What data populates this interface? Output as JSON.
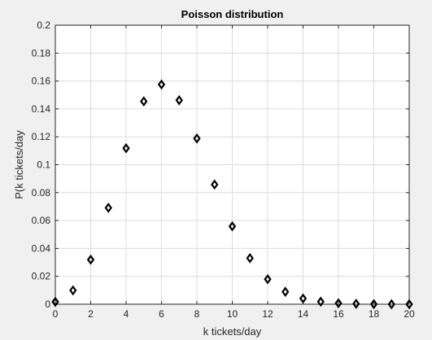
{
  "chart_data": {
    "type": "scatter",
    "title": "Poisson distribution",
    "xlabel": "k tickets/day",
    "ylabel": "P(k tickets/day",
    "xlim": [
      0,
      20
    ],
    "ylim": [
      0,
      0.2
    ],
    "xticks": [
      0,
      2,
      4,
      6,
      8,
      10,
      12,
      14,
      16,
      18,
      20
    ],
    "yticks": [
      0,
      0.02,
      0.04,
      0.06,
      0.08,
      0.1,
      0.12,
      0.14,
      0.16,
      0.18,
      0.2
    ],
    "xtick_labels": [
      "0",
      "2",
      "4",
      "6",
      "8",
      "10",
      "12",
      "14",
      "16",
      "18",
      "20"
    ],
    "ytick_labels": [
      "0",
      "0.02",
      "0.04",
      "0.06",
      "0.08",
      "0.1",
      "0.12",
      "0.14",
      "0.16",
      "0.18",
      "0.2"
    ],
    "grid": true,
    "marker": "diamond",
    "series": [
      {
        "x": [
          0,
          1,
          2,
          3,
          4,
          5,
          6,
          7,
          8,
          9,
          10,
          11,
          12,
          13,
          14,
          15,
          16,
          17,
          18,
          19,
          20
        ],
        "y": [
          0.0017,
          0.0099,
          0.0319,
          0.0691,
          0.1118,
          0.1454,
          0.1575,
          0.1462,
          0.1188,
          0.0858,
          0.0558,
          0.033,
          0.0179,
          0.0089,
          0.0041,
          0.0018,
          0.0007,
          0.0003,
          0.0001,
          0.0,
          0.0
        ],
        "color": "#000000"
      }
    ]
  }
}
